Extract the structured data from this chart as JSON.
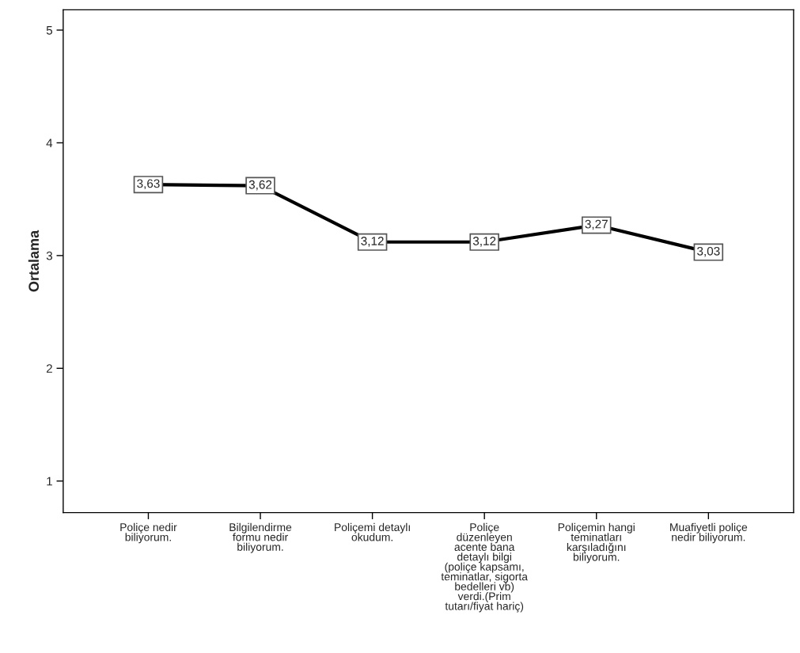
{
  "chart_data": {
    "type": "line",
    "ylabel": "Ortalama",
    "categories": [
      "Poliçe nedir\nbiliyorum.",
      "Bilgilendirme\nformu nedir\nbiliyorum.",
      "Poliçemi detaylı\nokudum.",
      "Poliçe\ndüzenleyen\nacente bana\ndetaylı bilgi\n(poliçe kapsamı,\nteminatlar, sigorta\nbedelleri vb)\nverdi.(Prim\ntutarı/fiyat hariç)",
      "Poliçemin hangi\nteminatları\nkarşıladığını\nbiliyorum.",
      "Muafiyetli poliçe\nnedir biliyorum."
    ],
    "series": [
      {
        "color": "#000000",
        "values": [
          3.63,
          3.62,
          3.12,
          3.12,
          3.27,
          3.03
        ],
        "value_labels": [
          "3,63",
          "3,62",
          "3,12",
          "3,12",
          "3,27",
          "3,03"
        ]
      }
    ],
    "ylim": [
      0.72,
      5.18
    ],
    "yticks": [
      1,
      2,
      3,
      4,
      5
    ],
    "grid": false,
    "legend": false,
    "marker": "square",
    "line_style": "solid"
  }
}
